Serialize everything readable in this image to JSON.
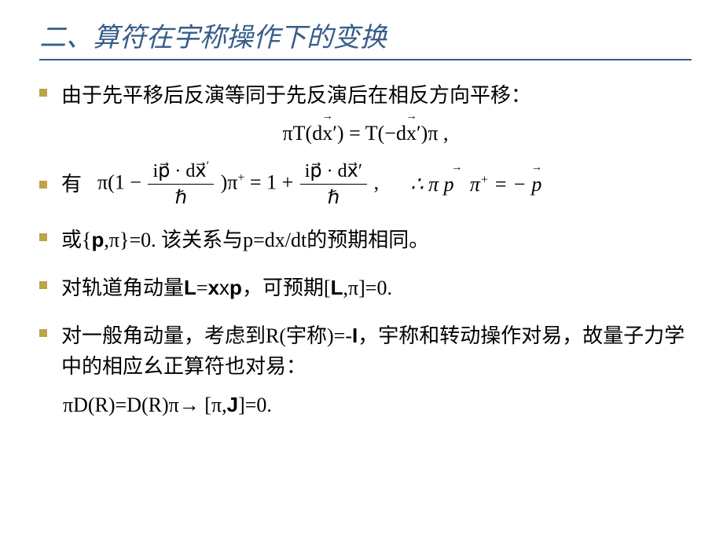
{
  "title": "二、算符在宇称操作下的变换",
  "bullets": {
    "b1": "由于先平移后反演等同于先反演后在相反方向平移：",
    "b2": "有",
    "b3_a": "或{",
    "b3_b": ",π}=0. 该关系与p=dx/dt的预期相同。",
    "b4_a": "对轨道角动量",
    "b4_b": "=",
    "b4_c": "x",
    "b4_d": "，可预期[",
    "b4_e": ",π]=0.",
    "b5_a": "对一般角动量，考虑到R(宇称)=-",
    "b5_b": "，宇称和转动操作对易，故量子力学中的相应幺正算符也对易：",
    "bold_p": "p",
    "bold_L": "L",
    "bold_x": "x",
    "bold_I": "I",
    "bold_J": "J"
  },
  "formulas": {
    "f1_pi": "π",
    "f1_T": "T(d",
    "f1_x": "x",
    "f1_prime": "′) = T(−d",
    "f1_end": "′)π ,",
    "f2_pi1": "π(1 −",
    "f2_ip": "ip⃗ · dx⃗",
    "f2_prime": "′",
    "f2_hbar": "ℏ",
    "f2_mid": ")π",
    "f2_plus": "+",
    "f2_eq": " = 1 +",
    "f2_comma": " ,",
    "f2_there": "∴ π ",
    "f2_p1": "p⃗",
    "f2_pip": "π",
    "f2_eqneg": " = − ",
    "f2_p2": "p⃗",
    "f3_a": "πD(R)=D(R)π",
    "f3_arrow": "→",
    "f3_b": " [π,",
    "f3_c": "]=0."
  },
  "colors": {
    "title_color": "#385d8a",
    "bullet_color": "#c0a24a",
    "text_color": "#000000",
    "bg": "#ffffff"
  },
  "fonts": {
    "title_size": 34,
    "body_size": 26
  }
}
